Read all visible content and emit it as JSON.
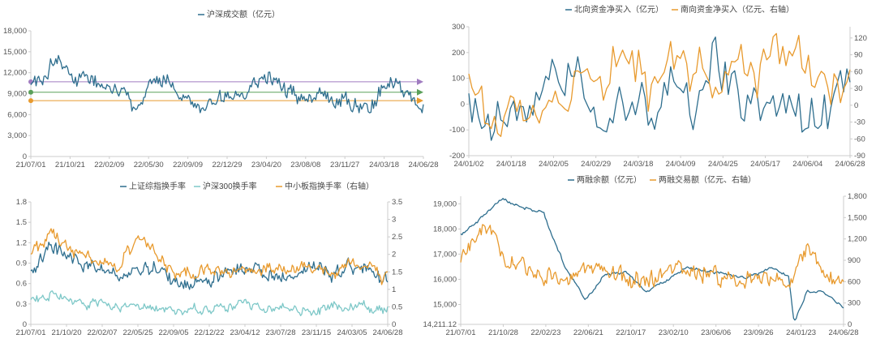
{
  "colors": {
    "blue": "#2e6e8e",
    "orange": "#e89a2e",
    "teal": "#7ec8c8",
    "axis": "#cccccc",
    "purple": "#a07cc0",
    "green": "#5aa05a"
  },
  "chart_data": [
    {
      "type": "line",
      "legend": [
        "沪深成交额（亿元）"
      ],
      "x_ticks": [
        "21/07/01",
        "21/10/21",
        "22/02/09",
        "22/05/30",
        "22/09/09",
        "22/12/29",
        "23/04/20",
        "23/08/08",
        "23/11/27",
        "24/03/18",
        "24/06/28"
      ],
      "y_ticks": [
        "0",
        "3,000",
        "6,000",
        "9,000",
        "12,000",
        "15,000",
        "18,000"
      ],
      "ylim": [
        0,
        18000
      ],
      "x_range": [
        "2021-07-01",
        "2024-06-28"
      ],
      "reference_levels": [
        10700,
        9200,
        8000
      ],
      "series": [
        {
          "name": "沪深成交额（亿元）",
          "color": "#2e6e8e",
          "x": [
            "2021-07-01",
            "2021-08-15",
            "2021-09-10",
            "2021-10-01",
            "2021-10-21",
            "2021-12-15",
            "2022-02-09",
            "2022-04-20",
            "2022-05-30",
            "2022-07-15",
            "2022-09-09",
            "2022-10-25",
            "2022-12-29",
            "2023-02-15",
            "2023-04-20",
            "2023-06-10",
            "2023-08-08",
            "2023-10-01",
            "2023-11-27",
            "2024-01-25",
            "2024-03-18",
            "2024-05-10",
            "2024-06-28"
          ],
          "values": [
            10500,
            12500,
            14500,
            13000,
            11500,
            11000,
            10000,
            7500,
            10000,
            11000,
            8000,
            7000,
            8500,
            9500,
            12000,
            9500,
            8500,
            9000,
            8000,
            7000,
            11000,
            9000,
            7000
          ]
        }
      ]
    },
    {
      "type": "line",
      "legend": [
        "北向资金净买入（亿元）",
        "南向资金净买入（亿元、右轴）"
      ],
      "x_ticks": [
        "24/01/02",
        "24/01/18",
        "24/02/05",
        "24/02/29",
        "24/03/18",
        "24/04/09",
        "24/04/25",
        "24/05/17",
        "24/06/04",
        "24/06/28"
      ],
      "y_ticks_left": [
        "-200",
        "-100",
        "0",
        "100",
        "200",
        "300"
      ],
      "y_ticks_right": [
        "-90",
        "-60",
        "-30",
        "0",
        "30",
        "60",
        "90",
        "120"
      ],
      "ylim_left": [
        -200,
        300
      ],
      "ylim_right": [
        -90,
        140
      ],
      "x_range": [
        "2024-01-02",
        "2024-06-28"
      ],
      "series": [
        {
          "name": "北向资金净买入（亿元）",
          "color": "#2e6e8e",
          "x": [
            "2024-01-02",
            "2024-01-12",
            "2024-01-22",
            "2024-02-01",
            "2024-02-20",
            "2024-03-05",
            "2024-03-18",
            "2024-04-01",
            "2024-04-15",
            "2024-04-26",
            "2024-05-10",
            "2024-05-22",
            "2024-06-04",
            "2024-06-18",
            "2024-06-28"
          ],
          "values": [
            -50,
            -80,
            -60,
            20,
            100,
            0,
            -40,
            20,
            -20,
            210,
            -60,
            0,
            -50,
            -30,
            40
          ]
        },
        {
          "name": "南向资金净买入（亿元、右轴）",
          "color": "#e89a2e",
          "x": [
            "2024-01-02",
            "2024-01-12",
            "2024-01-22",
            "2024-02-01",
            "2024-02-20",
            "2024-03-05",
            "2024-03-15",
            "2024-03-25",
            "2024-04-09",
            "2024-04-25",
            "2024-05-10",
            "2024-05-22",
            "2024-06-04",
            "2024-06-18",
            "2024-06-28"
          ],
          "values": [
            40,
            -10,
            10,
            -50,
            60,
            30,
            115,
            10,
            60,
            40,
            30,
            70,
            80,
            20,
            40
          ]
        }
      ]
    },
    {
      "type": "line",
      "legend": [
        "上证综指换手率",
        "沪深300换手率",
        "中小板指换手率（右轴）"
      ],
      "x_ticks": [
        "21/07/01",
        "21/10/20",
        "22/02/07",
        "22/05/25",
        "22/09/05",
        "22/12/22",
        "23/04/12",
        "23/07/28",
        "23/11/15",
        "24/03/05",
        "24/06/28"
      ],
      "y_ticks_left": [
        "0",
        "0.3",
        "0.6",
        "0.9",
        "1.2",
        "1.5",
        "1.8"
      ],
      "y_ticks_right": [
        "0",
        "0.5",
        "1",
        "1.5",
        "2",
        "2.5",
        "3",
        "3.5"
      ],
      "ylim_left": [
        0,
        1.8
      ],
      "ylim_right": [
        0,
        3.5
      ],
      "x_range": [
        "2021-07-01",
        "2024-06-28"
      ],
      "series": [
        {
          "name": "上证综指换手率",
          "color": "#2e6e8e",
          "x": [
            "2021-07-01",
            "2021-09-01",
            "2021-10-20",
            "2021-12-15",
            "2022-02-07",
            "2022-04-20",
            "2022-05-25",
            "2022-07-15",
            "2022-09-05",
            "2022-11-01",
            "2022-12-22",
            "2023-03-01",
            "2023-04-12",
            "2023-06-01",
            "2023-07-28",
            "2023-09-20",
            "2023-11-15",
            "2024-01-20",
            "2024-03-05",
            "2024-05-01",
            "2024-06-28"
          ],
          "values": [
            0.8,
            1.2,
            0.95,
            0.9,
            0.8,
            0.7,
            0.8,
            0.85,
            0.6,
            0.55,
            0.65,
            0.75,
            0.9,
            0.75,
            0.7,
            0.75,
            0.8,
            0.75,
            0.85,
            0.8,
            0.6
          ]
        },
        {
          "name": "沪深300换手率",
          "color": "#7ec8c8",
          "x": [
            "2021-07-01",
            "2021-09-01",
            "2021-10-20",
            "2021-12-15",
            "2022-02-07",
            "2022-05-25",
            "2022-09-05",
            "2022-12-22",
            "2023-04-12",
            "2023-07-28",
            "2023-11-15",
            "2024-03-05",
            "2024-06-28"
          ],
          "values": [
            0.35,
            0.45,
            0.35,
            0.3,
            0.28,
            0.25,
            0.2,
            0.22,
            0.3,
            0.2,
            0.2,
            0.28,
            0.2
          ]
        },
        {
          "name": "中小板指换手率（右轴）",
          "color": "#e89a2e",
          "x": [
            "2021-07-01",
            "2021-09-01",
            "2021-10-20",
            "2021-12-15",
            "2022-02-07",
            "2022-04-01",
            "2022-05-25",
            "2022-07-15",
            "2022-09-05",
            "2022-11-01",
            "2022-12-22",
            "2023-03-01",
            "2023-04-12",
            "2023-06-01",
            "2023-07-28",
            "2023-09-20",
            "2023-11-15",
            "2024-01-20",
            "2024-03-05",
            "2024-05-01",
            "2024-06-28"
          ],
          "values": [
            2.0,
            2.6,
            2.2,
            2.0,
            1.9,
            1.7,
            2.5,
            2.1,
            1.5,
            1.4,
            1.6,
            1.5,
            1.6,
            1.5,
            1.5,
            1.6,
            1.7,
            1.4,
            1.8,
            1.6,
            1.3
          ]
        }
      ]
    },
    {
      "type": "line",
      "legend": [
        "两融余额（亿元）",
        "两融交易额（亿元、右轴）"
      ],
      "x_ticks": [
        "21/07/01",
        "21/10/28",
        "22/02/23",
        "22/06/21",
        "22/10/17",
        "23/02/10",
        "23/06/06",
        "23/09/26",
        "24/01/23",
        "24/06/28"
      ],
      "y_ticks_left": [
        "14,211.12",
        "15,000",
        "16,000",
        "17,000",
        "18,000",
        "19,000"
      ],
      "y_ticks_right": [
        "0",
        "300",
        "600",
        "900",
        "1,200",
        "1,500",
        "1,800"
      ],
      "ylim_left": [
        14211.12,
        19300
      ],
      "ylim_right": [
        0,
        1800
      ],
      "x_range": [
        "2021-07-01",
        "2024-06-28"
      ],
      "series": [
        {
          "name": "两融余额（亿元）",
          "color": "#2e6e8e",
          "x": [
            "2021-07-01",
            "2021-09-01",
            "2021-10-28",
            "2021-12-15",
            "2022-02-23",
            "2022-04-25",
            "2022-06-21",
            "2022-08-20",
            "2022-10-17",
            "2022-12-15",
            "2023-02-10",
            "2023-04-10",
            "2023-06-06",
            "2023-08-01",
            "2023-09-26",
            "2023-12-01",
            "2024-01-23",
            "2024-02-08",
            "2024-03-15",
            "2024-05-01",
            "2024-06-28"
          ],
          "values": [
            17800,
            18500,
            19200,
            18900,
            18600,
            16500,
            15200,
            16200,
            16300,
            15500,
            16000,
            16500,
            16300,
            16200,
            16000,
            16500,
            16100,
            14300,
            15500,
            15500,
            14850
          ]
        },
        {
          "name": "两融交易额（亿元、右轴）",
          "color": "#e89a2e",
          "x": [
            "2021-07-01",
            "2021-08-15",
            "2021-09-20",
            "2021-10-28",
            "2021-12-15",
            "2022-02-23",
            "2022-04-25",
            "2022-06-21",
            "2022-08-20",
            "2022-10-17",
            "2022-12-15",
            "2023-02-10",
            "2023-04-10",
            "2023-06-06",
            "2023-08-01",
            "2023-09-26",
            "2023-12-01",
            "2024-01-23",
            "2024-03-15",
            "2024-05-01",
            "2024-06-28"
          ],
          "values": [
            900,
            1200,
            1400,
            900,
            800,
            700,
            600,
            800,
            700,
            600,
            650,
            800,
            850,
            700,
            650,
            600,
            650,
            550,
            1100,
            700,
            650
          ]
        }
      ]
    }
  ]
}
